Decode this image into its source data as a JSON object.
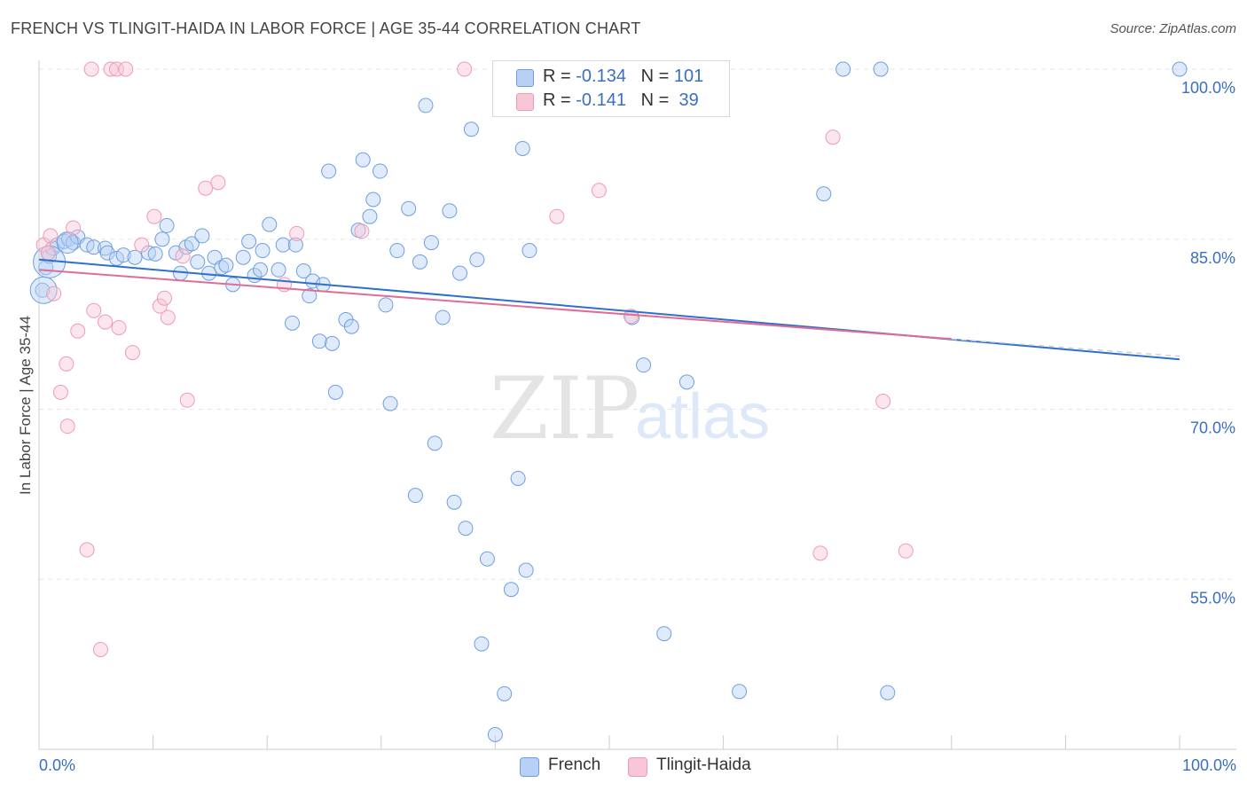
{
  "title": "FRENCH VS TLINGIT-HAIDA IN LABOR FORCE | AGE 35-44 CORRELATION CHART",
  "source": "Source: ZipAtlas.com",
  "watermark": {
    "zip": "ZIP",
    "atlas": "atlas"
  },
  "legend": {
    "rows": [
      {
        "r_label": "R =",
        "r_value": "-0.134",
        "n_label": "N =",
        "n_value": "101"
      },
      {
        "r_label": "R =",
        "r_value": "-0.141",
        "n_label": "N =",
        "n_value": "39"
      }
    ]
  },
  "chart_data": {
    "type": "scatter",
    "xlabel": "",
    "ylabel": "In Labor Force | Age 35-44",
    "xlim": [
      0,
      100
    ],
    "ylim": [
      40,
      100
    ],
    "x_tick_labels": {
      "min": "0.0%",
      "max": "100.0%"
    },
    "y_tick_labels": [
      {
        "value": 100,
        "label": "100.0%"
      },
      {
        "value": 85,
        "label": "85.0%"
      },
      {
        "value": 70,
        "label": "70.0%"
      },
      {
        "value": 55,
        "label": "55.0%"
      }
    ],
    "grid": true,
    "legend_position": "top-center",
    "colors": {
      "French": "#6e9fe0",
      "Tlingit-Haida": "#ef9ab5",
      "french_line": "#2f6fce",
      "tlingit_line": "#e06c97"
    },
    "series": [
      {
        "name": "French",
        "r": -0.134,
        "n": 101,
        "trend": {
          "x": [
            0,
            100
          ],
          "y": [
            83.2,
            74.4
          ]
        },
        "points": [
          [
            0.3,
            80.5
          ],
          [
            0.6,
            82.5
          ],
          [
            0.9,
            83.5
          ],
          [
            1.2,
            84.2
          ],
          [
            1.6,
            84.5
          ],
          [
            2.2,
            84.8
          ],
          [
            2.6,
            85.0
          ],
          [
            3.0,
            84.7
          ],
          [
            3.4,
            85.2
          ],
          [
            4.2,
            84.5
          ],
          [
            4.8,
            84.3
          ],
          [
            5.8,
            84.2
          ],
          [
            6.0,
            83.8
          ],
          [
            6.8,
            83.3
          ],
          [
            7.4,
            83.6
          ],
          [
            8.4,
            83.4
          ],
          [
            9.6,
            83.8
          ],
          [
            10.2,
            83.7
          ],
          [
            10.8,
            85.0
          ],
          [
            11.2,
            86.2
          ],
          [
            12.0,
            83.8
          ],
          [
            12.4,
            82.0
          ],
          [
            12.9,
            84.3
          ],
          [
            13.4,
            84.6
          ],
          [
            13.9,
            83.0
          ],
          [
            14.3,
            85.3
          ],
          [
            14.9,
            82.0
          ],
          [
            15.4,
            83.4
          ],
          [
            16.0,
            82.5
          ],
          [
            16.4,
            82.7
          ],
          [
            17.0,
            81.0
          ],
          [
            17.9,
            83.4
          ],
          [
            18.4,
            84.8
          ],
          [
            18.9,
            81.8
          ],
          [
            19.4,
            82.3
          ],
          [
            19.6,
            84.0
          ],
          [
            20.2,
            86.3
          ],
          [
            21.0,
            82.3
          ],
          [
            21.4,
            84.5
          ],
          [
            22.2,
            77.6
          ],
          [
            22.5,
            84.5
          ],
          [
            23.2,
            82.2
          ],
          [
            23.7,
            80.0
          ],
          [
            24.0,
            81.3
          ],
          [
            24.6,
            76.0
          ],
          [
            24.9,
            81.0
          ],
          [
            25.4,
            91.0
          ],
          [
            25.7,
            75.8
          ],
          [
            26.0,
            71.5
          ],
          [
            26.9,
            77.9
          ],
          [
            27.4,
            77.3
          ],
          [
            28.0,
            85.8
          ],
          [
            28.4,
            92.0
          ],
          [
            29.0,
            87.0
          ],
          [
            29.3,
            88.5
          ],
          [
            29.9,
            91.0
          ],
          [
            30.4,
            79.2
          ],
          [
            30.8,
            70.5
          ],
          [
            31.4,
            84.0
          ],
          [
            32.4,
            87.7
          ],
          [
            33.0,
            62.4
          ],
          [
            33.4,
            83.0
          ],
          [
            33.9,
            96.8
          ],
          [
            34.4,
            84.7
          ],
          [
            34.7,
            67.0
          ],
          [
            35.4,
            78.1
          ],
          [
            36.0,
            87.5
          ],
          [
            36.4,
            61.8
          ],
          [
            36.9,
            82.0
          ],
          [
            37.4,
            59.5
          ],
          [
            37.9,
            94.7
          ],
          [
            38.4,
            83.2
          ],
          [
            38.8,
            49.3
          ],
          [
            39.3,
            56.8
          ],
          [
            40.0,
            41.3
          ],
          [
            40.5,
            100.0
          ],
          [
            40.8,
            44.9
          ],
          [
            41.4,
            54.1
          ],
          [
            42.0,
            63.9
          ],
          [
            42.4,
            93.0
          ],
          [
            42.7,
            55.8
          ],
          [
            43.0,
            84.0
          ],
          [
            43.4,
            100.0
          ],
          [
            46.0,
            100.0
          ],
          [
            49.0,
            100.0
          ],
          [
            52.0,
            78.1
          ],
          [
            53.0,
            73.9
          ],
          [
            54.0,
            100.0
          ],
          [
            54.8,
            50.2
          ],
          [
            56.8,
            72.4
          ],
          [
            57.0,
            100.0
          ],
          [
            61.4,
            45.1
          ],
          [
            68.8,
            89.0
          ],
          [
            70.5,
            100.0
          ],
          [
            74.4,
            45.0
          ],
          [
            73.8,
            100.0
          ],
          [
            100.0,
            100.0
          ]
        ]
      },
      {
        "name": "Tlingit-Haida",
        "r": -0.141,
        "n": 39,
        "trend": {
          "x": [
            0,
            80
          ],
          "y": [
            82.3,
            76.2
          ]
        },
        "points": [
          [
            0.4,
            84.5
          ],
          [
            0.8,
            83.8
          ],
          [
            1.0,
            85.3
          ],
          [
            1.3,
            80.2
          ],
          [
            1.9,
            71.5
          ],
          [
            2.4,
            74.0
          ],
          [
            2.5,
            68.5
          ],
          [
            3.0,
            86.0
          ],
          [
            3.4,
            76.9
          ],
          [
            4.2,
            57.6
          ],
          [
            4.6,
            100.0
          ],
          [
            4.8,
            78.7
          ],
          [
            5.4,
            48.8
          ],
          [
            5.8,
            77.7
          ],
          [
            6.3,
            100.0
          ],
          [
            6.8,
            100.0
          ],
          [
            7.0,
            77.2
          ],
          [
            7.6,
            100.0
          ],
          [
            8.2,
            75.0
          ],
          [
            9.0,
            84.5
          ],
          [
            10.1,
            87.0
          ],
          [
            10.6,
            79.1
          ],
          [
            11.0,
            79.8
          ],
          [
            11.3,
            78.1
          ],
          [
            12.6,
            83.5
          ],
          [
            13.0,
            70.8
          ],
          [
            14.6,
            89.5
          ],
          [
            15.7,
            90.0
          ],
          [
            21.5,
            81.0
          ],
          [
            22.6,
            85.5
          ],
          [
            28.3,
            85.7
          ],
          [
            37.3,
            100.0
          ],
          [
            45.4,
            87.0
          ],
          [
            49.1,
            89.3
          ],
          [
            51.9,
            78.2
          ],
          [
            68.5,
            57.3
          ],
          [
            69.6,
            94.0
          ],
          [
            74.0,
            70.7
          ],
          [
            76.0,
            57.5
          ]
        ]
      }
    ]
  },
  "bottom_legend": [
    "French",
    "Tlingit-Haida"
  ]
}
